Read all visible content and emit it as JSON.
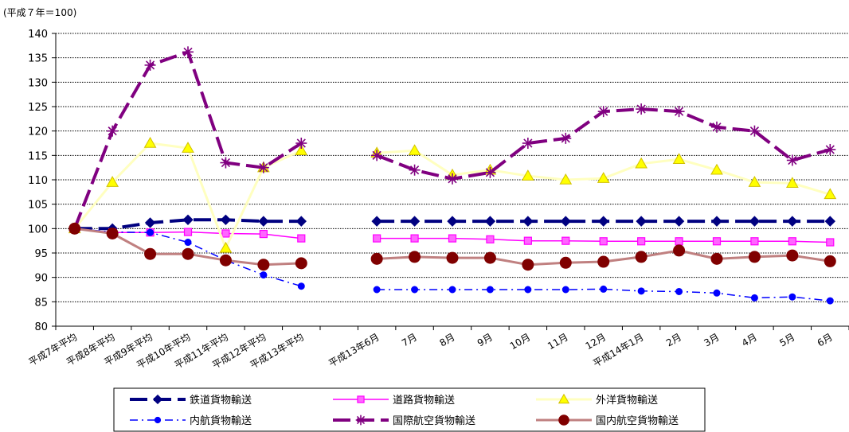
{
  "chart_data": {
    "type": "line",
    "unit_label": "(平成７年＝100)",
    "ylim": [
      80,
      140
    ],
    "yticks": [
      80,
      85,
      90,
      95,
      100,
      105,
      110,
      115,
      120,
      125,
      130,
      135,
      140
    ],
    "grid": true,
    "legend_position": "bottom",
    "categories": [
      "平成7年平均",
      "平成8年平均",
      "平成9年平均",
      "平成10年平均",
      "平成11年平均",
      "平成12年平均",
      "平成13年平均",
      "",
      "平成13年6月",
      "7月",
      "8月",
      "9月",
      "10月",
      "11月",
      "12月",
      "平成14年1月",
      "2月",
      "3月",
      "4月",
      "5月",
      "6月"
    ],
    "series": [
      {
        "name": "鉄道貨物輸送",
        "color": "#000080",
        "dash": "long-dash",
        "marker": "diamond",
        "values": [
          100,
          100,
          101.2,
          101.8,
          101.8,
          101.5,
          101.5,
          null,
          101.5,
          101.5,
          101.5,
          101.5,
          101.5,
          101.5,
          101.5,
          101.5,
          101.5,
          101.5,
          101.5,
          101.5,
          101.5
        ]
      },
      {
        "name": "道路貨物輸送",
        "color": "#ff00ff",
        "dash": "solid",
        "marker": "square",
        "values": [
          100,
          99.2,
          99.2,
          99.3,
          99,
          98.9,
          98,
          null,
          98,
          98,
          98,
          97.8,
          97.5,
          97.5,
          97.4,
          97.4,
          97.4,
          97.4,
          97.4,
          97.4,
          97.2
        ]
      },
      {
        "name": "外洋貨物輸送",
        "color": "#ffffc0",
        "dash": "solid",
        "marker": "triangle",
        "values": [
          100,
          109.5,
          117.5,
          116.5,
          96,
          112.5,
          116,
          null,
          115.5,
          116,
          111,
          112,
          110.8,
          110,
          110.3,
          113.3,
          114.2,
          112,
          109.5,
          109.3,
          107
        ]
      },
      {
        "name": "内航貨物輸送",
        "color": "#0000ff",
        "dash": "dash-dot",
        "marker": "circle",
        "values": [
          100,
          99.3,
          99.2,
          97.2,
          93.5,
          90.5,
          88.2,
          null,
          87.5,
          87.5,
          87.5,
          87.5,
          87.5,
          87.5,
          87.6,
          87.2,
          87.1,
          86.8,
          85.8,
          86,
          85.2
        ]
      },
      {
        "name": "国際航空貨物輸送",
        "color": "#800080",
        "dash": "long-dash",
        "marker": "asterisk",
        "values": [
          100,
          120,
          133.5,
          136.2,
          113.5,
          112.5,
          117.5,
          null,
          115,
          112,
          110.2,
          111.5,
          117.5,
          118.5,
          124,
          124.5,
          124,
          120.8,
          120,
          114,
          116.2
        ]
      },
      {
        "name": "国内航空貨物輸送",
        "color": "#c08080",
        "dash": "solid",
        "marker": "dot",
        "values": [
          100,
          99,
          94.8,
          94.8,
          93.5,
          92.6,
          92.9,
          null,
          93.8,
          94.2,
          94,
          94,
          92.6,
          93,
          93.2,
          94.2,
          95.5,
          93.8,
          94.2,
          94.5,
          93.3
        ]
      }
    ]
  }
}
